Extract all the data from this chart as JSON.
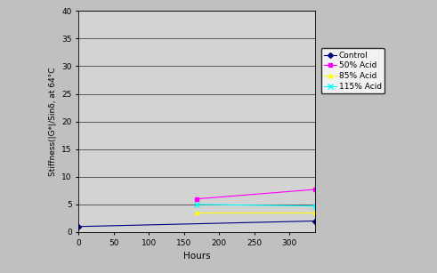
{
  "title": "",
  "xlabel": "Hours",
  "ylabel": "Stiffness(|G*|/Sinδ, at 64°C",
  "xlim": [
    0,
    336
  ],
  "ylim": [
    0,
    40
  ],
  "xticks": [
    0,
    50,
    100,
    150,
    200,
    250,
    300
  ],
  "yticks": [
    0,
    5,
    10,
    15,
    20,
    25,
    30,
    35,
    40
  ],
  "series": [
    {
      "label": "Control",
      "color": "#000080",
      "marker": "D",
      "marker_size": 3,
      "x": [
        0,
        336
      ],
      "y": [
        1.0,
        2.0
      ]
    },
    {
      "label": "50% Acid",
      "color": "#FF00FF",
      "marker": "s",
      "marker_size": 3,
      "x": [
        168,
        336
      ],
      "y": [
        6.0,
        7.7
      ]
    },
    {
      "label": "85% Acid",
      "color": "#FFFF00",
      "marker": "^",
      "marker_size": 3,
      "x": [
        168,
        336
      ],
      "y": [
        3.5,
        3.5
      ]
    },
    {
      "label": "115% Acid",
      "color": "#00FFFF",
      "marker": "x",
      "marker_size": 4,
      "x": [
        168,
        336
      ],
      "y": [
        5.0,
        4.7
      ]
    }
  ],
  "background_color": "#C0C0C0",
  "plot_bg_color": "#D3D3D3",
  "legend_fontsize": 6.5,
  "axis_fontsize": 7.5,
  "tick_fontsize": 6.5,
  "linewidth": 0.8,
  "figsize": [
    4.91,
    3.07
  ],
  "dpi": 100
}
